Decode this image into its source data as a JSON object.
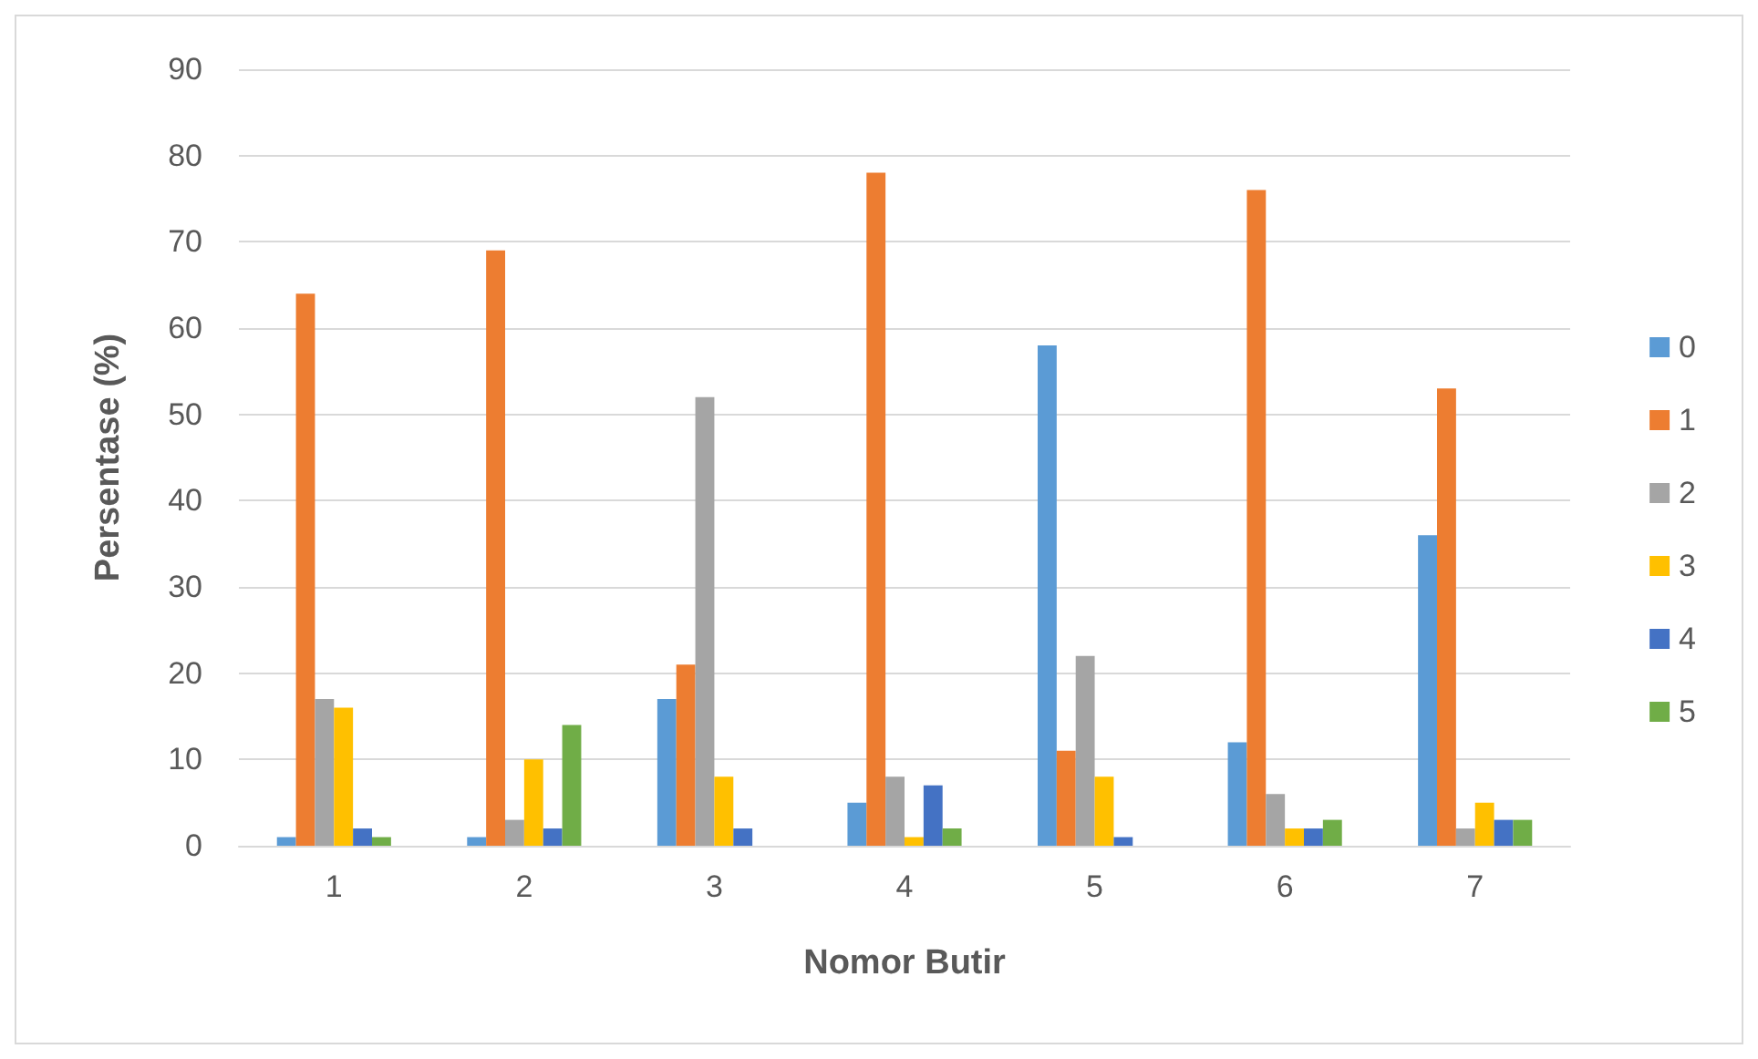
{
  "chart_data": {
    "type": "bar",
    "xlabel": "Nomor Butir",
    "ylabel": "Persentase (%)",
    "categories": [
      "1",
      "2",
      "3",
      "4",
      "5",
      "6",
      "7"
    ],
    "ylim": [
      0,
      90
    ],
    "yticks": [
      0,
      10,
      20,
      30,
      40,
      50,
      60,
      70,
      80,
      90
    ],
    "grid": "y",
    "legend": "right",
    "series": [
      {
        "name": "0",
        "color": "#5b9bd5",
        "values": [
          1,
          1,
          17,
          5,
          58,
          12,
          36
        ]
      },
      {
        "name": "1",
        "color": "#ed7d31",
        "values": [
          64,
          69,
          21,
          78,
          11,
          76,
          53
        ]
      },
      {
        "name": "2",
        "color": "#a5a5a5",
        "values": [
          17,
          3,
          52,
          8,
          22,
          6,
          2
        ]
      },
      {
        "name": "3",
        "color": "#ffc000",
        "values": [
          16,
          10,
          8,
          1,
          8,
          2,
          5
        ]
      },
      {
        "name": "4",
        "color": "#4472c4",
        "values": [
          2,
          2,
          2,
          7,
          1,
          2,
          3
        ]
      },
      {
        "name": "5",
        "color": "#70ad47",
        "values": [
          1,
          14,
          0,
          2,
          0,
          3,
          3
        ]
      }
    ]
  }
}
